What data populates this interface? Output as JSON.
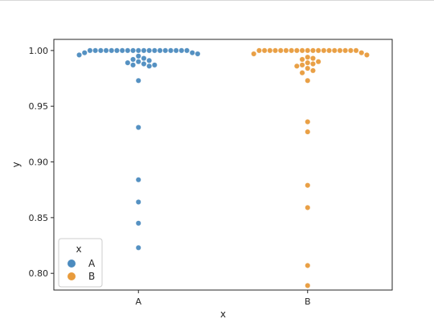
{
  "chart_data": {
    "type": "scatter",
    "subtype": "swarm",
    "title": "",
    "xlabel": "x",
    "ylabel": "y",
    "categories": [
      "A",
      "B"
    ],
    "ylim": [
      0.785,
      1.01
    ],
    "yticks": [
      "0.80",
      "0.85",
      "0.90",
      "0.95",
      "1.00"
    ],
    "ytick_values": [
      0.8,
      0.85,
      0.9,
      0.95,
      1.0
    ],
    "grid": false,
    "legend": {
      "title": "x",
      "placement": "lower-left",
      "entries": [
        "A",
        "B"
      ]
    },
    "colors": {
      "A": "#4c8bbf",
      "B": "#e89b3c"
    },
    "series": [
      {
        "name": "A",
        "category": "A",
        "values": [
          1.0,
          1.0,
          1.0,
          1.0,
          1.0,
          1.0,
          1.0,
          1.0,
          1.0,
          1.0,
          1.0,
          1.0,
          1.0,
          1.0,
          1.0,
          1.0,
          1.0,
          1.0,
          1.0,
          0.998,
          0.998,
          0.997,
          0.996,
          0.995,
          0.993,
          0.992,
          0.991,
          0.99,
          0.989,
          0.988,
          0.987,
          0.987,
          0.986,
          0.973,
          0.931,
          0.884,
          0.864,
          0.845,
          0.823
        ]
      },
      {
        "name": "B",
        "category": "B",
        "values": [
          1.0,
          1.0,
          1.0,
          1.0,
          1.0,
          1.0,
          1.0,
          1.0,
          1.0,
          1.0,
          1.0,
          1.0,
          1.0,
          1.0,
          1.0,
          1.0,
          1.0,
          1.0,
          1.0,
          0.998,
          0.997,
          0.996,
          0.994,
          0.993,
          0.992,
          0.99,
          0.989,
          0.988,
          0.987,
          0.986,
          0.984,
          0.982,
          0.98,
          0.973,
          0.936,
          0.927,
          0.879,
          0.859,
          0.807,
          0.789
        ]
      }
    ]
  }
}
